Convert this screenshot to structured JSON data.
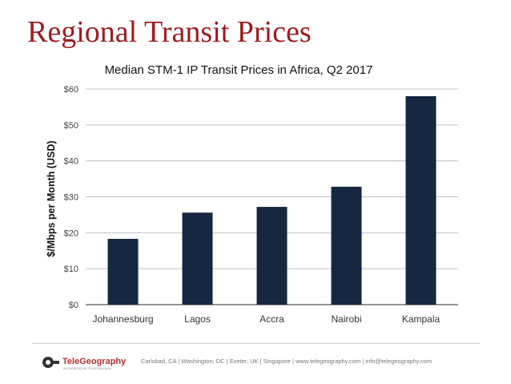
{
  "slide": {
    "title": "Regional Transit Prices"
  },
  "footer": {
    "brand": "TeleGeography",
    "tagline": "AUTHORITATIVE TELECOM DATA",
    "contact": "Carlsbad, CA | Washington, DC | Exeter, UK | Singapore | www.telegeography.com | info@telegeography.com"
  },
  "colors": {
    "title": "#9c1c1f",
    "bar": "#162840",
    "grid": "#bfbfbf",
    "axis": "#555555",
    "brand_red": "#b8312f"
  },
  "chart_data": {
    "type": "bar",
    "title": "Median STM-1 IP Transit Prices in Africa, Q2 2017",
    "ylabel": "$/Mbps per Month (USD)",
    "xlabel": "",
    "categories": [
      "Johannesburg",
      "Lagos",
      "Accra",
      "Nairobi",
      "Kampala"
    ],
    "values": [
      18.3,
      25.6,
      27.2,
      32.8,
      58.0
    ],
    "ylim": [
      0,
      60
    ],
    "yticks": [
      0,
      10,
      20,
      30,
      40,
      50,
      60
    ],
    "ytick_labels": [
      "$0",
      "$10",
      "$20",
      "$30",
      "$40",
      "$50",
      "$60"
    ],
    "grid": true,
    "legend": "none"
  }
}
